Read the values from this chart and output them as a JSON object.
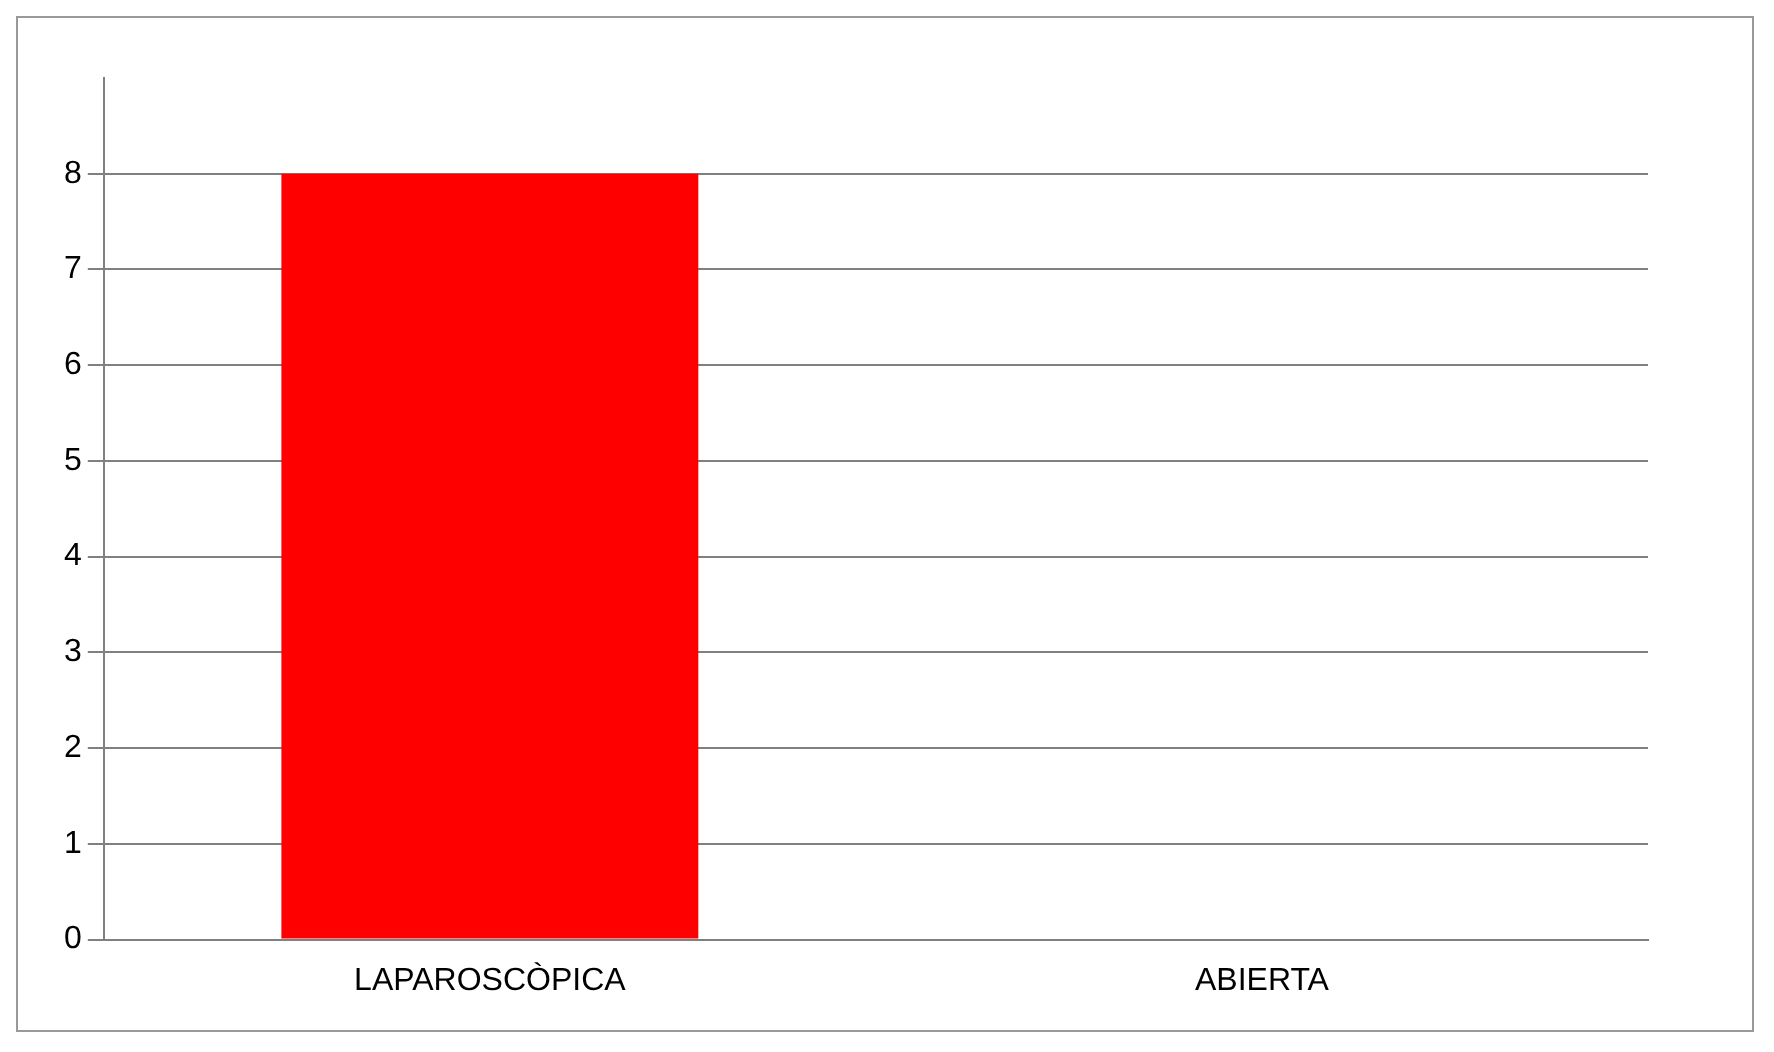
{
  "chart_data": {
    "type": "bar",
    "categories": [
      "LAPAROSCÒPICA",
      "ABIERTA"
    ],
    "values": [
      8,
      0
    ],
    "colors": [
      "#ff0000",
      "#0088b8"
    ],
    "ylim": [
      0,
      9
    ],
    "yticks": [
      0,
      1,
      2,
      3,
      4,
      5,
      6,
      7,
      8
    ],
    "grid": "y",
    "legend": false
  }
}
